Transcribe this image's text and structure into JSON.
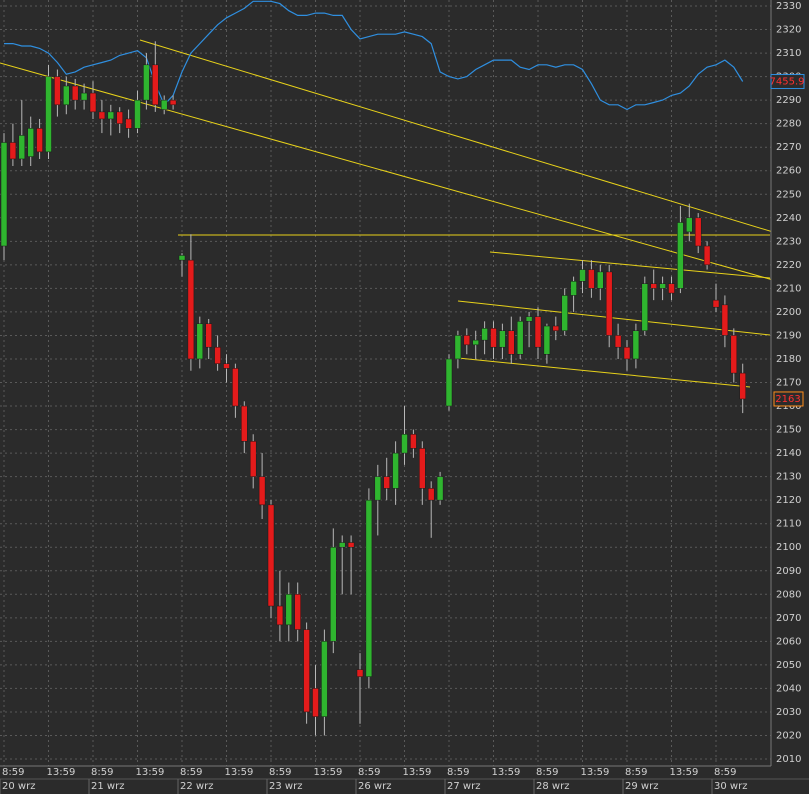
{
  "chart_data": {
    "type": "candlestick",
    "ylim": [
      2010,
      2330
    ],
    "yticks": [
      2010,
      2020,
      2030,
      2040,
      2050,
      2060,
      2070,
      2080,
      2090,
      2100,
      2110,
      2120,
      2130,
      2140,
      2150,
      2160,
      2170,
      2180,
      2190,
      2200,
      2210,
      2220,
      2230,
      2240,
      2250,
      2260,
      2270,
      2280,
      2290,
      2300,
      2310,
      2320,
      2330
    ],
    "grid": true,
    "up_color": "#2fb52f",
    "down_color": "#e41b1b",
    "xticks": [
      {
        "value": 0,
        "label": "8:59"
      },
      {
        "value": 5,
        "label": "13:59"
      },
      {
        "value": 10,
        "label": "8:59"
      },
      {
        "value": 15,
        "label": "13:59"
      },
      {
        "value": 20,
        "label": "8:59"
      },
      {
        "value": 25,
        "label": "13:59"
      },
      {
        "value": 30,
        "label": "8:59"
      },
      {
        "value": 35,
        "label": "13:59"
      },
      {
        "value": 40,
        "label": "8:59"
      },
      {
        "value": 45,
        "label": "13:59"
      },
      {
        "value": 50,
        "label": "8:59"
      },
      {
        "value": 55,
        "label": "13:59"
      },
      {
        "value": 60,
        "label": "8:59"
      },
      {
        "value": 65,
        "label": "13:59"
      },
      {
        "value": 70,
        "label": "8:59"
      },
      {
        "value": 75,
        "label": "13:59"
      },
      {
        "value": 80,
        "label": "8:59"
      }
    ],
    "date_ticks": [
      {
        "value": 0,
        "label": "20 wrz"
      },
      {
        "value": 10,
        "label": "21 wrz"
      },
      {
        "value": 20,
        "label": "22 wrz"
      },
      {
        "value": 30,
        "label": "23 wrz"
      },
      {
        "value": 40,
        "label": "26 wrz"
      },
      {
        "value": 50,
        "label": "27 wrz"
      },
      {
        "value": 60,
        "label": "28 wrz"
      },
      {
        "value": 70,
        "label": "29 wrz"
      },
      {
        "value": 80,
        "label": "30 wrz"
      }
    ],
    "candles": [
      {
        "open": 2228,
        "high": 2276,
        "low": 2222,
        "close": 2272
      },
      {
        "open": 2272,
        "high": 2280,
        "low": 2262,
        "close": 2265
      },
      {
        "open": 2265,
        "high": 2290,
        "low": 2262,
        "close": 2275
      },
      {
        "open": 2266,
        "high": 2283,
        "low": 2262,
        "close": 2278
      },
      {
        "open": 2278,
        "high": 2282,
        "low": 2265,
        "close": 2268
      },
      {
        "open": 2268,
        "high": 2305,
        "low": 2265,
        "close": 2300
      },
      {
        "open": 2300,
        "high": 2303,
        "low": 2283,
        "close": 2288
      },
      {
        "open": 2288,
        "high": 2300,
        "low": 2284,
        "close": 2296
      },
      {
        "open": 2296,
        "high": 2299,
        "low": 2286,
        "close": 2290
      },
      {
        "open": 2290,
        "high": 2297,
        "low": 2286,
        "close": 2293
      },
      {
        "open": 2293,
        "high": 2298,
        "low": 2282,
        "close": 2285
      },
      {
        "open": 2285,
        "high": 2290,
        "low": 2276,
        "close": 2282
      },
      {
        "open": 2282,
        "high": 2288,
        "low": 2275,
        "close": 2285
      },
      {
        "open": 2285,
        "high": 2287,
        "low": 2276,
        "close": 2280
      },
      {
        "open": 2282,
        "high": 2286,
        "low": 2274,
        "close": 2278
      },
      {
        "open": 2278,
        "high": 2294,
        "low": 2276,
        "close": 2290
      },
      {
        "open": 2290,
        "high": 2310,
        "low": 2286,
        "close": 2305
      },
      {
        "open": 2305,
        "high": 2315,
        "low": 2285,
        "close": 2288
      },
      {
        "open": 2286,
        "high": 2292,
        "low": 2284,
        "close": 2290
      },
      {
        "open": 2290,
        "high": 2292,
        "low": 2286,
        "close": 2288
      },
      {
        "open": 2222,
        "high": 2225,
        "low": 2215,
        "close": 2224
      },
      {
        "open": 2222,
        "high": 2233,
        "low": 2175,
        "close": 2180
      },
      {
        "open": 2180,
        "high": 2198,
        "low": 2176,
        "close": 2195
      },
      {
        "open": 2195,
        "high": 2197,
        "low": 2180,
        "close": 2185
      },
      {
        "open": 2185,
        "high": 2190,
        "low": 2175,
        "close": 2178
      },
      {
        "open": 2178,
        "high": 2182,
        "low": 2170,
        "close": 2176
      },
      {
        "open": 2176,
        "high": 2178,
        "low": 2155,
        "close": 2160
      },
      {
        "open": 2160,
        "high": 2162,
        "low": 2140,
        "close": 2145
      },
      {
        "open": 2145,
        "high": 2148,
        "low": 2125,
        "close": 2130
      },
      {
        "open": 2130,
        "high": 2140,
        "low": 2112,
        "close": 2118
      },
      {
        "open": 2118,
        "high": 2120,
        "low": 2070,
        "close": 2075
      },
      {
        "open": 2075,
        "high": 2090,
        "low": 2060,
        "close": 2067
      },
      {
        "open": 2067,
        "high": 2085,
        "low": 2060,
        "close": 2080
      },
      {
        "open": 2080,
        "high": 2085,
        "low": 2060,
        "close": 2065
      },
      {
        "open": 2065,
        "high": 2068,
        "low": 2025,
        "close": 2030
      },
      {
        "open": 2040,
        "high": 2050,
        "low": 2020,
        "close": 2028
      },
      {
        "open": 2028,
        "high": 2065,
        "low": 2020,
        "close": 2060
      },
      {
        "open": 2060,
        "high": 2108,
        "low": 2055,
        "close": 2100
      },
      {
        "open": 2100,
        "high": 2105,
        "low": 2080,
        "close": 2102
      },
      {
        "open": 2102,
        "high": 2105,
        "low": 2080,
        "close": 2100
      },
      {
        "open": 2048,
        "high": 2055,
        "low": 2025,
        "close": 2045
      },
      {
        "open": 2045,
        "high": 2125,
        "low": 2040,
        "close": 2120
      },
      {
        "open": 2120,
        "high": 2135,
        "low": 2105,
        "close": 2130
      },
      {
        "open": 2130,
        "high": 2138,
        "low": 2120,
        "close": 2125
      },
      {
        "open": 2125,
        "high": 2145,
        "low": 2118,
        "close": 2140
      },
      {
        "open": 2140,
        "high": 2160,
        "low": 2135,
        "close": 2148
      },
      {
        "open": 2148,
        "high": 2150,
        "low": 2138,
        "close": 2142
      },
      {
        "open": 2142,
        "high": 2145,
        "low": 2118,
        "close": 2125
      },
      {
        "open": 2125,
        "high": 2128,
        "low": 2104,
        "close": 2120
      },
      {
        "open": 2120,
        "high": 2132,
        "low": 2118,
        "close": 2130
      },
      {
        "open": 2160,
        "high": 2182,
        "low": 2158,
        "close": 2180
      },
      {
        "open": 2180,
        "high": 2192,
        "low": 2176,
        "close": 2190
      },
      {
        "open": 2190,
        "high": 2193,
        "low": 2182,
        "close": 2186
      },
      {
        "open": 2186,
        "high": 2192,
        "low": 2180,
        "close": 2188
      },
      {
        "open": 2188,
        "high": 2196,
        "low": 2182,
        "close": 2193
      },
      {
        "open": 2193,
        "high": 2196,
        "low": 2180,
        "close": 2185
      },
      {
        "open": 2185,
        "high": 2195,
        "low": 2180,
        "close": 2192
      },
      {
        "open": 2192,
        "high": 2198,
        "low": 2178,
        "close": 2182
      },
      {
        "open": 2182,
        "high": 2198,
        "low": 2180,
        "close": 2196
      },
      {
        "open": 2196,
        "high": 2200,
        "low": 2185,
        "close": 2198
      },
      {
        "open": 2198,
        "high": 2202,
        "low": 2180,
        "close": 2185
      },
      {
        "open": 2182,
        "high": 2195,
        "low": 2178,
        "close": 2194
      },
      {
        "open": 2194,
        "high": 2198,
        "low": 2188,
        "close": 2192
      },
      {
        "open": 2192,
        "high": 2210,
        "low": 2190,
        "close": 2207
      },
      {
        "open": 2207,
        "high": 2215,
        "low": 2200,
        "close": 2213
      },
      {
        "open": 2213,
        "high": 2222,
        "low": 2208,
        "close": 2218
      },
      {
        "open": 2218,
        "high": 2222,
        "low": 2206,
        "close": 2210
      },
      {
        "open": 2210,
        "high": 2220,
        "low": 2205,
        "close": 2217
      },
      {
        "open": 2217,
        "high": 2220,
        "low": 2185,
        "close": 2190
      },
      {
        "open": 2190,
        "high": 2195,
        "low": 2180,
        "close": 2185
      },
      {
        "open": 2185,
        "high": 2188,
        "low": 2175,
        "close": 2180
      },
      {
        "open": 2180,
        "high": 2195,
        "low": 2176,
        "close": 2192
      },
      {
        "open": 2192,
        "high": 2215,
        "low": 2190,
        "close": 2212
      },
      {
        "open": 2212,
        "high": 2218,
        "low": 2205,
        "close": 2210
      },
      {
        "open": 2210,
        "high": 2215,
        "low": 2205,
        "close": 2212
      },
      {
        "open": 2212,
        "high": 2215,
        "low": 2205,
        "close": 2208
      },
      {
        "open": 2210,
        "high": 2245,
        "low": 2208,
        "close": 2238
      },
      {
        "open": 2234,
        "high": 2246,
        "low": 2230,
        "close": 2240
      },
      {
        "open": 2240,
        "high": 2242,
        "low": 2225,
        "close": 2228
      },
      {
        "open": 2228,
        "high": 2230,
        "low": 2218,
        "close": 2220
      },
      {
        "open": 2205,
        "high": 2212,
        "low": 2200,
        "close": 2202
      },
      {
        "open": 2203,
        "high": 2207,
        "low": 2185,
        "close": 2190
      },
      {
        "open": 2190,
        "high": 2193,
        "low": 2170,
        "close": 2174
      },
      {
        "open": 2174,
        "high": 2178,
        "low": 2157,
        "close": 2163
      }
    ],
    "y2lim": [
      7168,
      7488
    ],
    "series": [
      {
        "color": "#2f8fe0",
        "axis": "y2",
        "values": [
          7472,
          7472,
          7471,
          7471,
          7470,
          7468,
          7464,
          7459,
          7460,
          7462,
          7463,
          7464,
          7465,
          7467,
          7468,
          7469,
          7466,
          7455,
          7446,
          7450,
          7460,
          7468,
          7472,
          7476,
          7480,
          7483,
          7485,
          7487,
          7490,
          7490,
          7490,
          7489,
          7486,
          7484,
          7484,
          7485,
          7485,
          7484,
          7484,
          7478,
          7474,
          7475,
          7476,
          7476,
          7476,
          7477,
          7476,
          7475,
          7472,
          7460,
          7458,
          7457,
          7458,
          7461,
          7463,
          7465,
          7465,
          7465,
          7462,
          7461,
          7463,
          7463,
          7462,
          7463,
          7463,
          7461,
          7455,
          7448,
          7446,
          7446,
          7444,
          7446,
          7446,
          7447,
          7448,
          7450,
          7451,
          7454,
          7459,
          7462,
          7463,
          7465,
          7462,
          7455.9
        ]
      }
    ]
  }
}
